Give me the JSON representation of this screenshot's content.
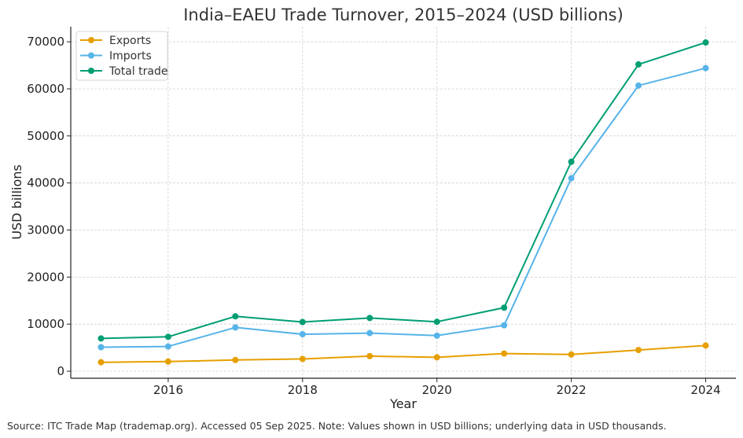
{
  "chart_data": {
    "type": "line",
    "title": "India–EAEU Trade Turnover, 2015–2024 (USD billions)",
    "xlabel": "Year",
    "ylabel": "USD billions",
    "x": [
      2015,
      2016,
      2017,
      2018,
      2019,
      2020,
      2021,
      2022,
      2023,
      2024
    ],
    "xlim": [
      2014.55,
      2024.45
    ],
    "ylim": [
      -1500,
      73200
    ],
    "xticks": [
      2016,
      2018,
      2020,
      2022,
      2024
    ],
    "yticks": [
      0,
      10000,
      20000,
      30000,
      40000,
      50000,
      60000,
      70000
    ],
    "grid": true,
    "legend": "top-left",
    "series": [
      {
        "name": "Exports",
        "color": "#E69F00",
        "values": [
          1900,
          2050,
          2380,
          2600,
          3200,
          2950,
          3750,
          3550,
          4500,
          5450
        ]
      },
      {
        "name": "Imports",
        "color": "#56B4E9",
        "values": [
          5100,
          5250,
          9300,
          7850,
          8100,
          7550,
          9750,
          41000,
          60700,
          64400
        ]
      },
      {
        "name": "Total trade",
        "color": "#009E73",
        "values": [
          6950,
          7300,
          11650,
          10450,
          11300,
          10500,
          13500,
          44500,
          65200,
          69850
        ]
      }
    ]
  },
  "footer": {
    "source_note": "Source: ITC Trade Map (trademap.org). Accessed 05 Sep 2025. Note: Values shown in USD billions; underlying data in USD thousands."
  }
}
